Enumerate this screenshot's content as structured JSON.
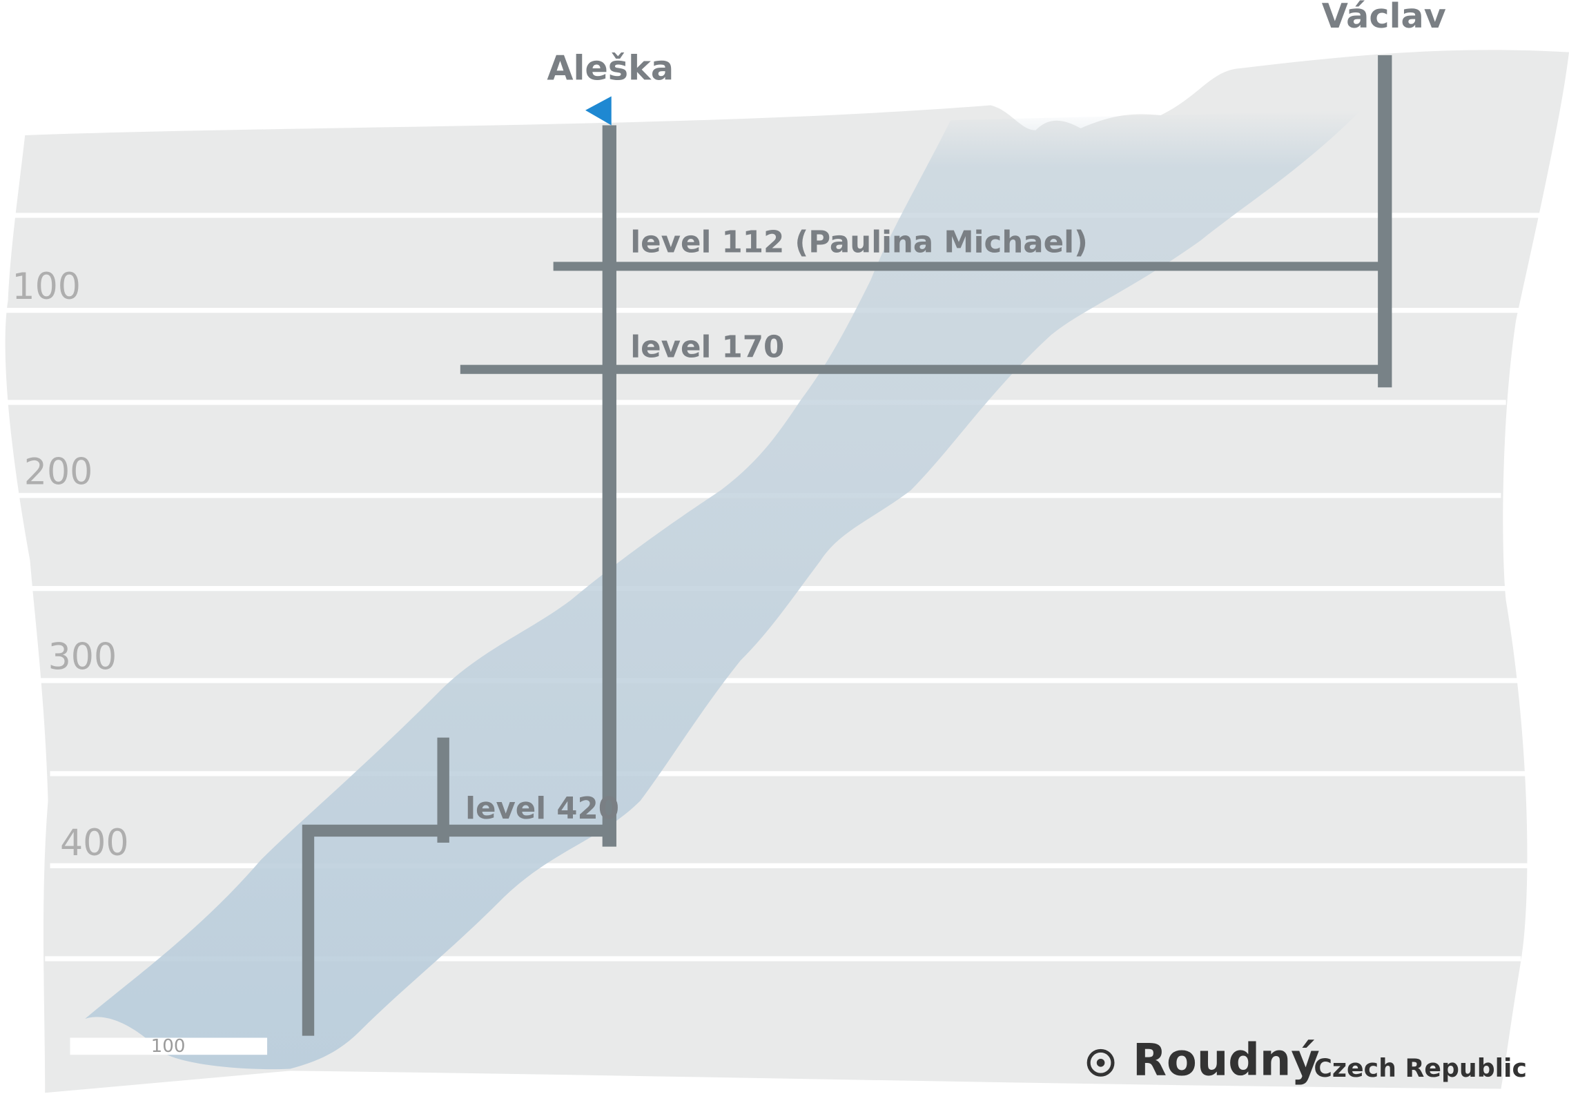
{
  "shafts": [
    {
      "label": "Aleška"
    },
    {
      "label": "Václav"
    }
  ],
  "levels": [
    "level 112 (Paulina Michael)",
    "level 170",
    "level 420"
  ],
  "depth_labels": [
    100,
    200,
    300,
    400
  ],
  "scale_bar": {
    "label": 100
  },
  "footer": {
    "title": "Roudný",
    "subtitle": "Czech Republic"
  }
}
